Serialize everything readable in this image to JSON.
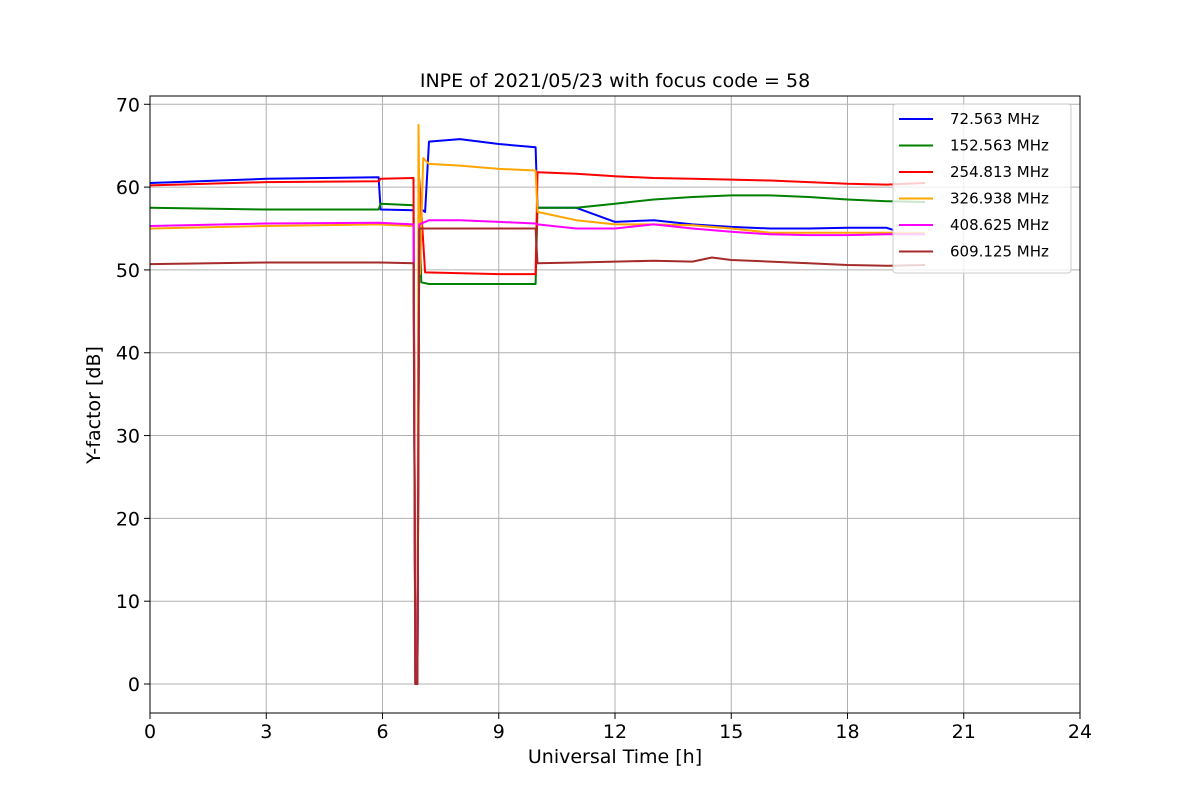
{
  "chart_data": {
    "type": "line",
    "title": "INPE of 2021/05/23 with focus code = 58",
    "xlabel": "Universal Time [h]",
    "ylabel": "Y-factor [dB]",
    "xlim": [
      0,
      24
    ],
    "ylim": [
      -3.5,
      71
    ],
    "xticks": [
      0,
      3,
      6,
      9,
      12,
      15,
      18,
      21,
      24
    ],
    "yticks": [
      0,
      10,
      20,
      30,
      40,
      50,
      60,
      70
    ],
    "grid": true,
    "legend_position": "top-right",
    "series": [
      {
        "name": " 72.563 MHz",
        "color": "#0000ff",
        "points": [
          [
            0,
            60.5
          ],
          [
            3,
            61.0
          ],
          [
            5.9,
            61.2
          ],
          [
            5.95,
            57.3
          ],
          [
            6.8,
            57.2
          ],
          [
            6.85,
            0
          ],
          [
            6.9,
            0
          ],
          [
            6.95,
            57.5
          ],
          [
            7.1,
            57.0
          ],
          [
            7.2,
            65.5
          ],
          [
            8,
            65.8
          ],
          [
            9,
            65.2
          ],
          [
            9.95,
            64.8
          ],
          [
            10.0,
            57.5
          ],
          [
            11,
            57.5
          ],
          [
            12,
            55.8
          ],
          [
            13,
            56.0
          ],
          [
            14,
            55.5
          ],
          [
            15,
            55.2
          ],
          [
            16,
            55.0
          ],
          [
            17,
            55.0
          ],
          [
            18,
            55.1
          ],
          [
            19,
            55.1
          ],
          [
            19.2,
            54.8
          ]
        ]
      },
      {
        "name": "152.563 MHz",
        "color": "#008000",
        "points": [
          [
            0,
            57.5
          ],
          [
            3,
            57.3
          ],
          [
            5.9,
            57.3
          ],
          [
            5.95,
            58.0
          ],
          [
            6.8,
            57.8
          ],
          [
            6.85,
            0
          ],
          [
            6.9,
            0
          ],
          [
            6.95,
            57.8
          ],
          [
            7.0,
            48.5
          ],
          [
            7.2,
            48.3
          ],
          [
            9.95,
            48.3
          ],
          [
            10.0,
            57.5
          ],
          [
            11,
            57.5
          ],
          [
            12,
            58.0
          ],
          [
            13,
            58.5
          ],
          [
            14,
            58.8
          ],
          [
            15,
            59.0
          ],
          [
            16,
            59.0
          ],
          [
            17,
            58.8
          ],
          [
            18,
            58.5
          ],
          [
            19,
            58.3
          ],
          [
            20,
            58.2
          ]
        ]
      },
      {
        "name": "254.813 MHz",
        "color": "#ff0000",
        "points": [
          [
            0,
            60.2
          ],
          [
            3,
            60.6
          ],
          [
            5.9,
            60.7
          ],
          [
            5.95,
            61.0
          ],
          [
            6.8,
            61.1
          ],
          [
            6.85,
            0
          ],
          [
            6.9,
            0
          ],
          [
            6.95,
            61.0
          ],
          [
            7.1,
            49.7
          ],
          [
            9,
            49.5
          ],
          [
            9.95,
            49.5
          ],
          [
            10.0,
            61.8
          ],
          [
            11,
            61.6
          ],
          [
            12,
            61.3
          ],
          [
            13,
            61.1
          ],
          [
            14,
            61.0
          ],
          [
            15,
            60.9
          ],
          [
            16,
            60.8
          ],
          [
            17,
            60.6
          ],
          [
            18,
            60.4
          ],
          [
            19,
            60.3
          ],
          [
            20,
            60.5
          ]
        ]
      },
      {
        "name": "326.938 MHz",
        "color": "#ffa500",
        "points": [
          [
            0,
            55.0
          ],
          [
            3,
            55.3
          ],
          [
            5.9,
            55.5
          ],
          [
            6.8,
            55.3
          ],
          [
            6.85,
            0
          ],
          [
            6.9,
            0
          ],
          [
            6.93,
            67.5
          ],
          [
            6.97,
            49.5
          ],
          [
            7.05,
            63.5
          ],
          [
            7.2,
            62.8
          ],
          [
            8,
            62.6
          ],
          [
            9,
            62.2
          ],
          [
            9.95,
            62.0
          ],
          [
            10.0,
            57.0
          ],
          [
            11,
            56.0
          ],
          [
            12,
            55.5
          ],
          [
            13,
            55.5
          ],
          [
            14,
            55.4
          ],
          [
            15,
            55.0
          ],
          [
            16,
            54.5
          ],
          [
            17,
            54.5
          ],
          [
            18,
            54.5
          ],
          [
            19,
            54.5
          ],
          [
            20,
            54.5
          ]
        ]
      },
      {
        "name": "408.625 MHz",
        "color": "#ff00ff",
        "points": [
          [
            0,
            55.3
          ],
          [
            3,
            55.6
          ],
          [
            5.9,
            55.7
          ],
          [
            6.8,
            55.5
          ],
          [
            6.85,
            0
          ],
          [
            6.9,
            0
          ],
          [
            6.95,
            55.5
          ],
          [
            7.2,
            56.0
          ],
          [
            8,
            56.0
          ],
          [
            9,
            55.8
          ],
          [
            9.95,
            55.6
          ],
          [
            10.0,
            55.5
          ],
          [
            11,
            55.0
          ],
          [
            12,
            55.0
          ],
          [
            13,
            55.5
          ],
          [
            14,
            55.0
          ],
          [
            15,
            54.6
          ],
          [
            16,
            54.3
          ],
          [
            17,
            54.2
          ],
          [
            18,
            54.2
          ],
          [
            19,
            54.3
          ],
          [
            20,
            54.3
          ]
        ]
      },
      {
        "name": "609.125 MHz",
        "color": "#a52a2a",
        "points": [
          [
            0,
            50.7
          ],
          [
            3,
            50.9
          ],
          [
            5.9,
            50.9
          ],
          [
            6.8,
            50.8
          ],
          [
            6.85,
            0
          ],
          [
            6.9,
            0
          ],
          [
            6.95,
            55.0
          ],
          [
            7.5,
            55.0
          ],
          [
            9,
            55.0
          ],
          [
            9.95,
            55.0
          ],
          [
            10.0,
            50.8
          ],
          [
            11,
            50.9
          ],
          [
            12,
            51.0
          ],
          [
            13,
            51.1
          ],
          [
            14,
            51.0
          ],
          [
            14.5,
            51.5
          ],
          [
            15,
            51.2
          ],
          [
            16,
            51.0
          ],
          [
            17,
            50.8
          ],
          [
            18,
            50.6
          ],
          [
            19,
            50.5
          ],
          [
            20,
            50.6
          ]
        ]
      }
    ]
  }
}
